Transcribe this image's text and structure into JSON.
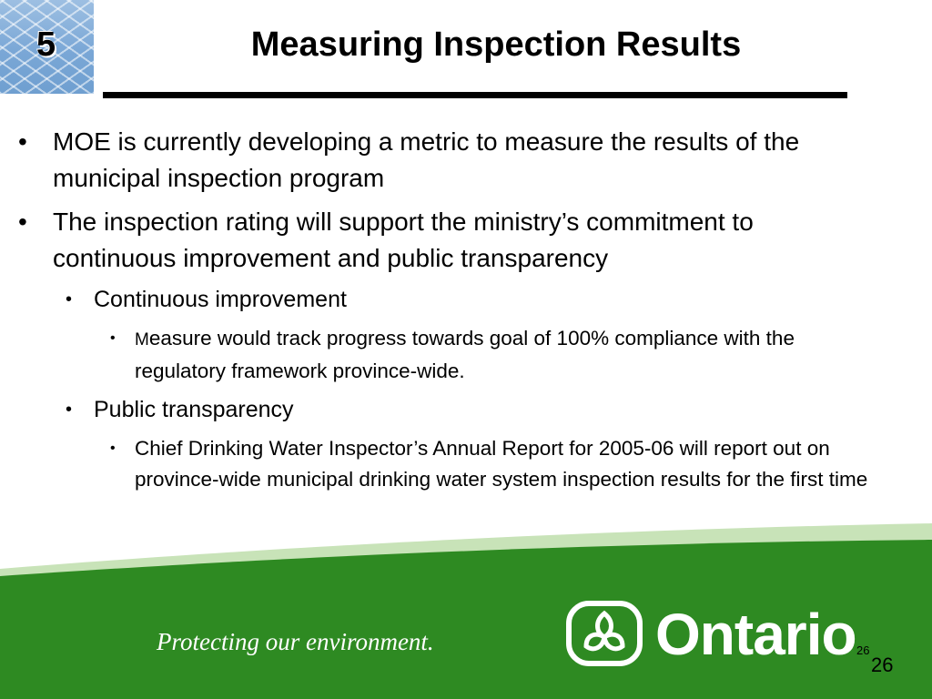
{
  "header": {
    "slide_number": "5",
    "title": "Measuring Inspection Results"
  },
  "bullets": {
    "b1_text": "MOE is currently developing a metric to measure the results of the municipal inspection program",
    "b2_text": "The inspection rating will support the ministry’s commitment to continuous improvement and public transparency",
    "b2_sub1": "Continuous improvement",
    "b2_sub1_detail_initial": "M",
    "b2_sub1_detail": "easure would track progress towards goal of 100% compliance with the regulatory framework province-wide.",
    "b2_sub2": "Public transparency",
    "b2_sub2_detail": "Chief Drinking Water Inspector’s Annual Report for 2005-06 will report out on province-wide municipal drinking water system inspection results for the first time"
  },
  "footer": {
    "tagline": "Protecting our environment.",
    "brand": "Ontario",
    "page_small": "26",
    "page_large": "26"
  },
  "colors": {
    "footer_green": "#2e8a22",
    "footer_light_green": "#c8e3b8",
    "corner_blue": "#7aa7d6"
  }
}
